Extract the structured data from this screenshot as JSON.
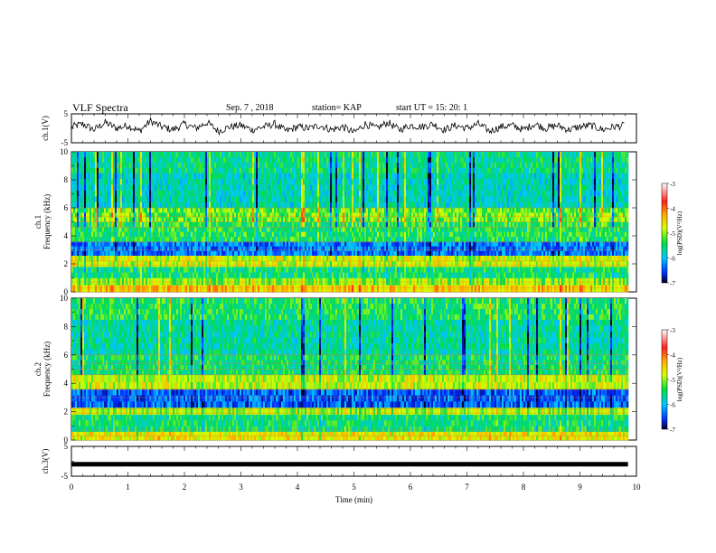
{
  "header": {
    "title": "VLF Spectra",
    "date": "Sep. 7  , 2018",
    "station": "station= KAP",
    "start": "start  UT  =   15: 20: 1"
  },
  "chart_data": [
    {
      "type": "line",
      "name": "ch1-waveform",
      "ylabel": "ch.1(V)",
      "ylim": [
        -5,
        5
      ],
      "yticks": [
        "5",
        "-5"
      ],
      "xlim": [
        0,
        10
      ],
      "x": [
        0,
        0.2,
        0.4,
        0.6,
        0.8,
        1.0,
        1.2,
        1.4,
        1.6,
        1.8,
        2.0,
        2.2,
        2.4,
        2.6,
        2.8,
        3.0,
        3.2,
        3.4,
        3.6,
        3.8,
        4.0,
        4.2,
        4.4,
        4.6,
        4.8,
        5.0,
        5.2,
        5.4,
        5.6,
        5.8,
        6.0,
        6.2,
        6.4,
        6.6,
        6.8,
        7.0,
        7.2,
        7.4,
        7.6,
        7.8,
        8.0,
        8.2,
        8.4,
        8.6,
        8.8,
        9.0,
        9.2,
        9.4,
        9.6,
        9.8
      ],
      "y": [
        0.5,
        1.5,
        -0.5,
        2,
        0,
        1,
        -1,
        2.5,
        0.5,
        -0.5,
        1.5,
        0,
        2,
        -1,
        0.5,
        1,
        -0.5,
        0.5,
        1.5,
        -1,
        0.5,
        0,
        1,
        -0.5,
        0.5,
        -1.5,
        1.5,
        0,
        2,
        -0.5,
        1,
        0.5,
        1.5,
        -0.5,
        1,
        0,
        1.5,
        -1,
        0.5,
        1,
        -0.5,
        1.5,
        0,
        1,
        -0.5,
        0.5,
        1,
        -0.5,
        0.5,
        1
      ]
    },
    {
      "type": "heatmap",
      "name": "ch1-spectrogram",
      "ylabel": "ch.1\nFrequency (kHz)",
      "ylim": [
        0,
        10
      ],
      "xlim": [
        0,
        9.85
      ],
      "yticks": [
        "0",
        "2",
        "4",
        "6",
        "8",
        "10"
      ],
      "colorbar": {
        "label": "log(PSD)(V²/Hz)",
        "ticks": [
          "-3",
          "-4",
          "-5",
          "-6",
          "-7"
        ],
        "range": [
          -7,
          -3
        ]
      },
      "bands": [
        {
          "f": [
            0.0,
            0.5
          ],
          "value": -4.2
        },
        {
          "f": [
            0.5,
            1.0
          ],
          "value": -4.8
        },
        {
          "f": [
            1.0,
            1.8
          ],
          "value": -5.3
        },
        {
          "f": [
            1.8,
            2.6
          ],
          "value": -4.6
        },
        {
          "f": [
            2.6,
            3.6
          ],
          "value": -6.2
        },
        {
          "f": [
            3.6,
            5.0
          ],
          "value": -5.2
        },
        {
          "f": [
            5.0,
            6.0
          ],
          "value": -4.9
        },
        {
          "f": [
            6.0,
            8.5
          ],
          "value": -5.6
        },
        {
          "f": [
            8.5,
            10.0
          ],
          "value": -5.4
        }
      ]
    },
    {
      "type": "heatmap",
      "name": "ch2-spectrogram",
      "ylabel": "ch.2\nFrequency (kHz)",
      "ylim": [
        0,
        10
      ],
      "xlim": [
        0,
        9.85
      ],
      "yticks": [
        "0",
        "2",
        "4",
        "6",
        "8",
        "10"
      ],
      "colorbar": {
        "label": "log(PSD)(V²/Hz)",
        "ticks": [
          "-3",
          "-4",
          "-5",
          "-6",
          "-7"
        ],
        "range": [
          -7,
          -3
        ]
      },
      "bands": [
        {
          "f": [
            0.0,
            0.6
          ],
          "value": -4.4
        },
        {
          "f": [
            0.6,
            1.8
          ],
          "value": -5.3
        },
        {
          "f": [
            1.8,
            2.3
          ],
          "value": -4.7
        },
        {
          "f": [
            2.3,
            3.6
          ],
          "value": -6.3
        },
        {
          "f": [
            3.6,
            4.6
          ],
          "value": -4.6
        },
        {
          "f": [
            4.6,
            6.0
          ],
          "value": -5.3
        },
        {
          "f": [
            6.0,
            8.5
          ],
          "value": -5.5
        },
        {
          "f": [
            8.5,
            10.0
          ],
          "value": -5.2
        }
      ]
    },
    {
      "type": "line",
      "name": "ch3-waveform",
      "ylabel": "ch.3(V)",
      "ylim": [
        -5,
        5
      ],
      "yticks": [
        "5",
        "-5"
      ],
      "xlim": [
        0,
        10
      ],
      "x": [
        0,
        9.85
      ],
      "y": [
        -1,
        -1
      ]
    }
  ],
  "xaxis": {
    "label": "Time  (min)",
    "ticks": [
      "0",
      "1",
      "2",
      "3",
      "4",
      "5",
      "6",
      "7",
      "8",
      "9",
      "10"
    ]
  },
  "colors": {
    "axis": "#000000",
    "line": "#000000",
    "background": "#ffffff"
  }
}
